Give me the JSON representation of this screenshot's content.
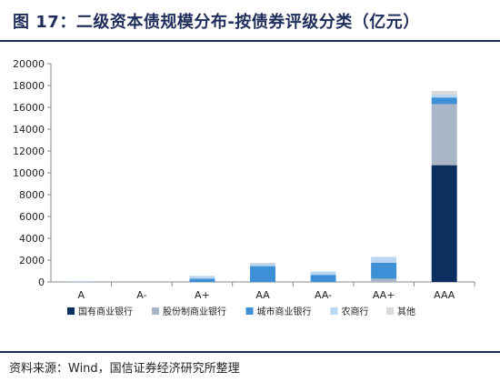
{
  "title": "图 17：二级资本债规模分布-按债券评级分类（亿元）",
  "source": "资料来源：Wind，国信证券经济研究所整理",
  "chart_data": {
    "type": "bar",
    "stacked": true,
    "title": "图 17：二级资本债规模分布-按债券评级分类（亿元）",
    "xlabel": "",
    "ylabel": "",
    "categories": [
      "A",
      "A-",
      "A+",
      "AA",
      "AA-",
      "AA+",
      "AAA"
    ],
    "ylim": [
      0,
      20000
    ],
    "yticks": [
      0,
      2000,
      4000,
      6000,
      8000,
      10000,
      12000,
      14000,
      16000,
      18000,
      20000
    ],
    "grid": false,
    "legend_position": "bottom",
    "series": [
      {
        "name": "国有商业银行",
        "color": "#0b2f5e",
        "values": [
          0,
          0,
          0,
          0,
          0,
          0,
          10700
        ]
      },
      {
        "name": "股份制商业银行",
        "color": "#a8b6c8",
        "values": [
          0,
          0,
          0,
          0,
          0,
          300,
          5600
        ]
      },
      {
        "name": "城市商业银行",
        "color": "#3d8fd6",
        "values": [
          0,
          0,
          300,
          1450,
          650,
          1450,
          600
        ]
      },
      {
        "name": "农商行",
        "color": "#b9d6f0",
        "values": [
          100,
          0,
          250,
          250,
          300,
          550,
          300
        ]
      },
      {
        "name": "其他",
        "color": "#d9d9d9",
        "values": [
          0,
          0,
          0,
          50,
          0,
          0,
          300
        ]
      }
    ]
  }
}
